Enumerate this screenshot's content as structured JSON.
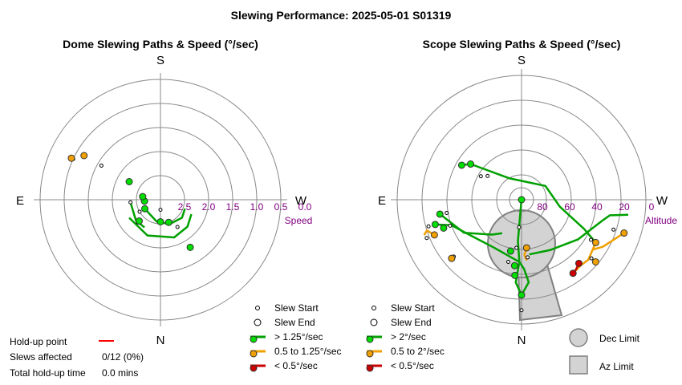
{
  "title": "Slewing Performance: 2025-05-01 S01319",
  "chart_data": [
    {
      "type": "polar",
      "title": "Dome Slewing Paths & Speed (°/sec)",
      "compass": {
        "top": "S",
        "bottom": "N",
        "left": "E",
        "right": "W"
      },
      "radial_axis": {
        "label": "Speed",
        "direction": "inward",
        "range": [
          0.0,
          3.0
        ],
        "ticks": [
          "2.5",
          "2.0",
          "1.5",
          "1.0",
          "0.5",
          "0.0"
        ]
      },
      "grid": true,
      "legend": {
        "position": "bottom-right",
        "entries": [
          "Slew Start",
          "Slew End",
          "> 1.25°/sec",
          "0.5 to 1.25°/sec",
          "< 0.5°/sec"
        ],
        "colors": [
          "#000000",
          "#000000",
          "#00a000",
          "#f0a000",
          "#cc0000"
        ]
      },
      "series": [
        {
          "category": "fast",
          "color": "#00a000",
          "points": [
            [
              212,
              1.6,
              2.2
            ],
            [
              200,
              2.4,
              2.4
            ],
            [
              180,
              2.45,
              2.75
            ],
            [
              135,
              2.25,
              2.2
            ],
            [
              120,
              2.55,
              2.4
            ],
            [
              95,
              2.6,
              2.25
            ],
            [
              80,
              2.55,
              2.55
            ],
            [
              60,
              2.1,
              1.3
            ]
          ]
        },
        {
          "category": "medium",
          "color": "#f0a000",
          "points": [
            [
              60,
              0.8,
              0.8
            ],
            [
              65,
              0.55,
              0.6
            ]
          ]
        }
      ]
    },
    {
      "type": "polar",
      "title": "Scope Slewing Paths & Speed (°/sec)",
      "compass": {
        "top": "S",
        "bottom": "N",
        "left": "E",
        "right": "W"
      },
      "radial_axis": {
        "label": "Altitude",
        "direction": "inward",
        "range": [
          90,
          0
        ],
        "ticks": [
          "80",
          "60",
          "40",
          "20",
          "0"
        ]
      },
      "grid": true,
      "legend": {
        "position": "bottom-right",
        "entries": [
          "Slew Start",
          "Slew End",
          "> 2°/sec",
          "0.5 to 2°/sec",
          "< 0.5°/sec",
          "Dec Limit",
          "Az Limit"
        ],
        "colors": [
          "#000000",
          "#000000",
          "#00a000",
          "#f0a000",
          "#cc0000",
          "#d3d3d3",
          "#d3d3d3"
        ]
      },
      "series": [
        {
          "category": "fast",
          "color": "#00a000",
          "points": [
            [
              180,
              21,
              10
            ],
            [
              175,
              35,
              70
            ],
            [
              174,
              42,
              55
            ],
            [
              168,
              52,
              44
            ],
            [
              110,
              30,
              35
            ],
            [
              106,
              25,
              20
            ],
            [
              0,
              90,
              90
            ],
            [
              100,
              30,
              35
            ],
            [
              55,
              45,
              60
            ],
            [
              60,
              40,
              56
            ]
          ]
        },
        {
          "category": "medium",
          "color": "#f0a000",
          "points": [
            [
              252,
              12,
              20
            ],
            [
              240,
              28,
              32
            ],
            [
              230,
              20,
              24
            ],
            [
              186,
              55,
              48
            ],
            [
              112,
              22,
              16
            ],
            [
              130,
              24,
              26
            ]
          ]
        },
        {
          "category": "slow",
          "color": "#cc0000",
          "points": [
            [
              215,
              25,
              25
            ],
            [
              222,
              28,
              28
            ]
          ]
        }
      ],
      "limits": {
        "dec_limit": "circle below pole",
        "az_limit": "wedge toward N"
      }
    }
  ],
  "legend_text": {
    "slew_start": "Slew Start",
    "slew_end": "Slew End",
    "dome_fast": "> 1.25°/sec",
    "dome_medium": "0.5 to 1.25°/sec",
    "dome_slow": "< 0.5°/sec",
    "scope_fast": "> 2°/sec",
    "scope_medium": "0.5 to 2°/sec",
    "scope_slow": "< 0.5°/sec",
    "dec_limit": "Dec Limit",
    "az_limit": "Az Limit"
  },
  "holdup": {
    "point_label": "Hold-up point",
    "slews_affected_label": "Slews affected",
    "slews_affected_value": "0/12 (0%)",
    "total_label": "Total hold-up time",
    "total_value": "0.0 mins",
    "line_color": "#ff0000"
  }
}
